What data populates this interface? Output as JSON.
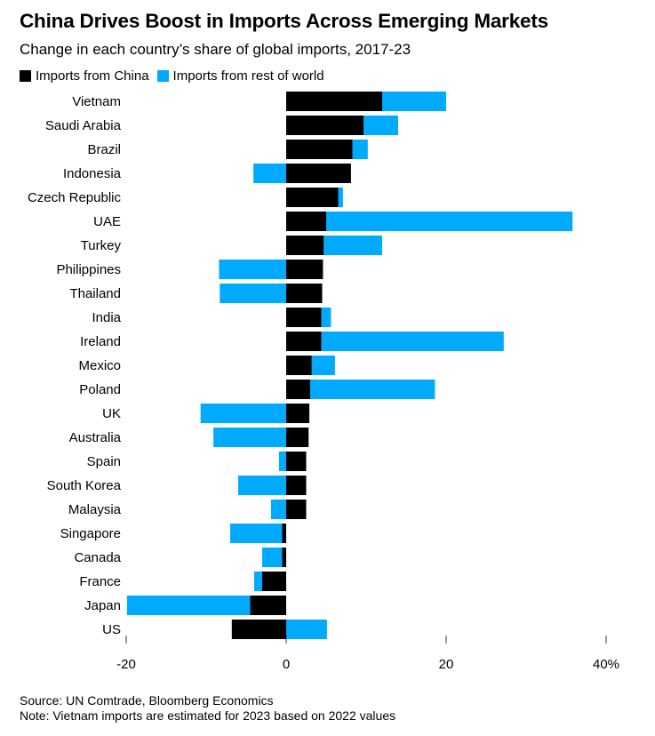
{
  "colors": {
    "china": "#000000",
    "rest_of_world": "#00aaff",
    "axis_text": "#000000",
    "tick": "#333333"
  },
  "chart_data": {
    "type": "bar",
    "orientation": "horizontal",
    "stacked": "diverging",
    "title": "China Drives Boost in Imports Across Emerging Markets",
    "subtitle": "Change in each country’s share of global imports, 2017-23",
    "legend": {
      "placement": "top-left"
    },
    "categories": [
      "Vietnam",
      "Saudi Arabia",
      "Brazil",
      "Indonesia",
      "Czech Republic",
      "UAE",
      "Turkey",
      "Philippines",
      "Thailand",
      "India",
      "Ireland",
      "Mexico",
      "Poland",
      "UK",
      "Australia",
      "Spain",
      "South Korea",
      "Malaysia",
      "Singapore",
      "Canada",
      "France",
      "Japan",
      "US"
    ],
    "series": [
      {
        "name": "Imports from China",
        "color_key": "china",
        "values": [
          12.0,
          9.7,
          8.3,
          8.1,
          6.5,
          5.0,
          4.7,
          4.6,
          4.5,
          4.4,
          4.4,
          3.2,
          3.0,
          2.9,
          2.8,
          2.5,
          2.5,
          2.5,
          -0.5,
          -0.5,
          -3.0,
          -4.5,
          -6.8
        ]
      },
      {
        "name": "Imports from rest of world",
        "color_key": "rest_of_world",
        "values": [
          8.0,
          4.3,
          1.9,
          -4.1,
          0.6,
          30.8,
          7.3,
          -8.4,
          -8.3,
          1.2,
          22.8,
          2.9,
          15.6,
          -10.7,
          -9.1,
          -0.9,
          -6.0,
          -1.9,
          -6.5,
          -2.5,
          -1.0,
          -15.4,
          5.1
        ]
      }
    ],
    "x_axis": {
      "ticks": [
        -20,
        0,
        20,
        40
      ],
      "tick_labels": [
        "-20",
        "0",
        "20",
        "40%"
      ],
      "xlim": [
        -20,
        40
      ],
      "grid": false
    }
  },
  "footer": {
    "source": "Source: UN Comtrade, Bloomberg Economics",
    "note": "Note: Vietnam imports are estimated for 2023 based on 2022 values"
  }
}
